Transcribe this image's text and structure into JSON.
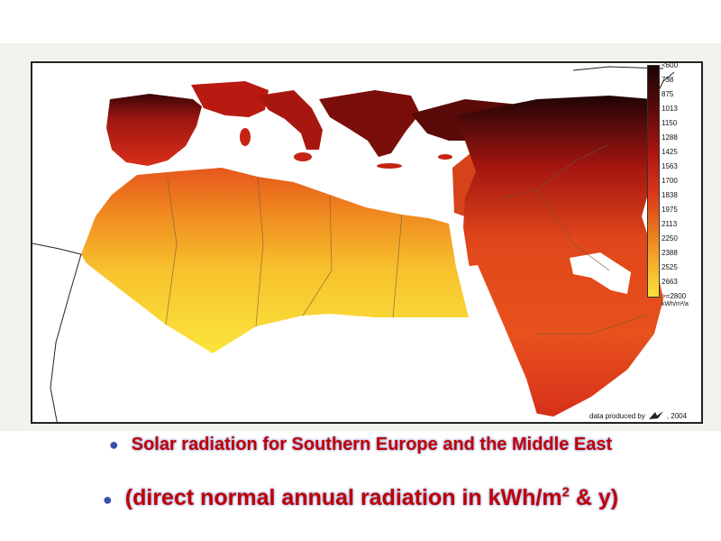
{
  "colors": {
    "very_low": "#1c0404",
    "low": "#5a0a08",
    "mid_low": "#b0150f",
    "mid": "#d9361a",
    "mid_high": "#ec7a1e",
    "high": "#f6b128",
    "very_high": "#fbe23a",
    "sea": "#ffffff",
    "bullet": "#3a4fb0",
    "title_text": "#c00000"
  },
  "legend": {
    "labels": [
      "<600",
      "738",
      "875",
      "1013",
      "1150",
      "1288",
      "1425",
      "1563",
      "1700",
      "1838",
      "1975",
      "2113",
      "2250",
      "2388",
      "2525",
      "2663",
      ">=2800"
    ],
    "unit": "kWh/m²/a"
  },
  "credit": {
    "text": "data produced by",
    "year": ", 2004",
    "logo_icon": "dlr-logo-icon"
  },
  "bullets": {
    "line1": "Solar radiation for Southern Europe and the Middle East",
    "line2_prefix": "(direct normal annual radiation in kWh/m",
    "line2_sup": "2",
    "line2_suffix": " & y)"
  }
}
